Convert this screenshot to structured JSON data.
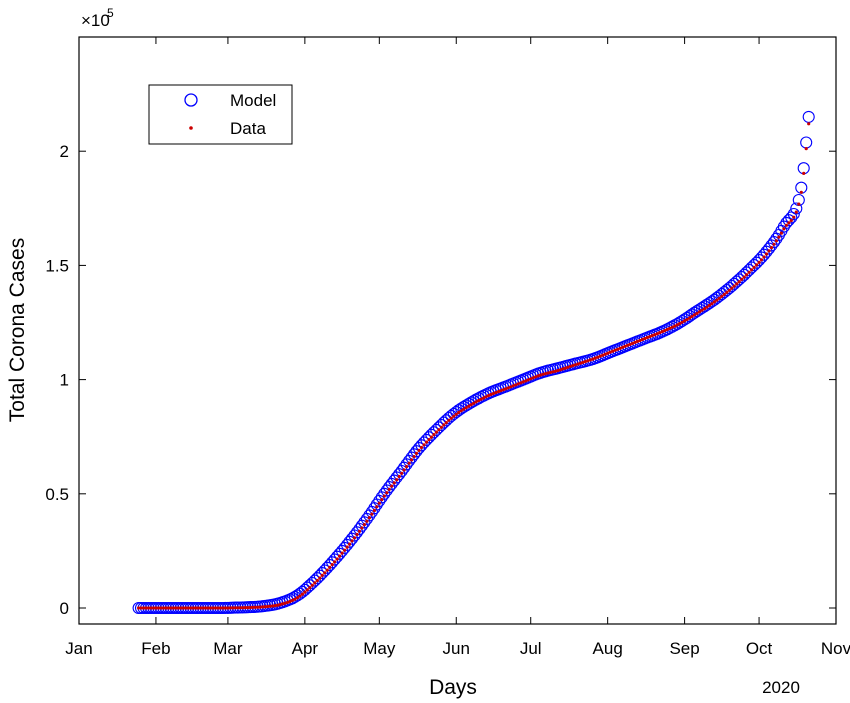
{
  "chart_data": {
    "type": "scatter",
    "year_label": "2020",
    "xlabel": "Days",
    "ylabel": "Total Corona Cases",
    "y_multiplier_base": "×10",
    "y_multiplier_exp": "5",
    "xlim": [
      "2020-01-01",
      "2020-11-01"
    ],
    "x_ticks": [
      {
        "date": "2020-01-01",
        "label": "Jan"
      },
      {
        "date": "2020-02-01",
        "label": "Feb"
      },
      {
        "date": "2020-03-01",
        "label": "Mar"
      },
      {
        "date": "2020-04-01",
        "label": "Apr"
      },
      {
        "date": "2020-05-01",
        "label": "May"
      },
      {
        "date": "2020-06-01",
        "label": "Jun"
      },
      {
        "date": "2020-07-01",
        "label": "Jul"
      },
      {
        "date": "2020-08-01",
        "label": "Aug"
      },
      {
        "date": "2020-09-01",
        "label": "Sep"
      },
      {
        "date": "2020-10-01",
        "label": "Oct"
      },
      {
        "date": "2020-11-01",
        "label": "Nov"
      }
    ],
    "ylim": [
      -0.07,
      2.5
    ],
    "y_ticks": [
      {
        "value": 0,
        "label": "0"
      },
      {
        "value": 0.5,
        "label": "0.5"
      },
      {
        "value": 1,
        "label": "1"
      },
      {
        "value": 1.5,
        "label": "1.5"
      },
      {
        "value": 2,
        "label": "2"
      }
    ],
    "grid": false,
    "legend_position": "top-left",
    "series": [
      {
        "name": "Model",
        "marker": "circle",
        "color": "#0000ff",
        "x": [
          "2020-01-25",
          "2020-02-05",
          "2020-02-15",
          "2020-02-25",
          "2020-03-05",
          "2020-03-15",
          "2020-03-22",
          "2020-03-29",
          "2020-04-05",
          "2020-04-12",
          "2020-04-19",
          "2020-04-26",
          "2020-05-03",
          "2020-05-10",
          "2020-05-17",
          "2020-05-24",
          "2020-05-31",
          "2020-06-07",
          "2020-06-14",
          "2020-06-21",
          "2020-06-28",
          "2020-07-05",
          "2020-07-12",
          "2020-07-19",
          "2020-07-26",
          "2020-08-02",
          "2020-08-09",
          "2020-08-16",
          "2020-08-23",
          "2020-08-30",
          "2020-09-06",
          "2020-09-13",
          "2020-09-20",
          "2020-09-27",
          "2020-10-04",
          "2020-10-11",
          "2020-10-18",
          "2020-10-21"
        ],
        "y": [
          0.0,
          0.0,
          0.0,
          0.0,
          0.002,
          0.008,
          0.022,
          0.055,
          0.12,
          0.2,
          0.29,
          0.39,
          0.5,
          0.6,
          0.7,
          0.78,
          0.85,
          0.9,
          0.94,
          0.97,
          1.0,
          1.03,
          1.05,
          1.07,
          1.09,
          1.12,
          1.15,
          1.18,
          1.21,
          1.25,
          1.3,
          1.35,
          1.41,
          1.48,
          1.56,
          1.67,
          1.84,
          2.15
        ]
      },
      {
        "name": "Data",
        "marker": "dot",
        "color": "#cc0000",
        "x": [
          "2020-01-25",
          "2020-02-05",
          "2020-02-15",
          "2020-02-25",
          "2020-03-05",
          "2020-03-15",
          "2020-03-22",
          "2020-03-29",
          "2020-04-05",
          "2020-04-12",
          "2020-04-19",
          "2020-04-26",
          "2020-05-03",
          "2020-05-10",
          "2020-05-17",
          "2020-05-24",
          "2020-05-31",
          "2020-06-07",
          "2020-06-14",
          "2020-06-21",
          "2020-06-28",
          "2020-07-05",
          "2020-07-12",
          "2020-07-19",
          "2020-07-26",
          "2020-08-02",
          "2020-08-09",
          "2020-08-16",
          "2020-08-23",
          "2020-08-30",
          "2020-09-06",
          "2020-09-13",
          "2020-09-20",
          "2020-09-27",
          "2020-10-04",
          "2020-10-11",
          "2020-10-18",
          "2020-10-21"
        ],
        "y": [
          0.0,
          0.0,
          0.0,
          0.0,
          0.001,
          0.005,
          0.015,
          0.045,
          0.11,
          0.19,
          0.28,
          0.38,
          0.49,
          0.59,
          0.69,
          0.77,
          0.84,
          0.89,
          0.93,
          0.96,
          0.99,
          1.02,
          1.04,
          1.065,
          1.09,
          1.12,
          1.15,
          1.18,
          1.21,
          1.245,
          1.29,
          1.34,
          1.4,
          1.47,
          1.55,
          1.66,
          1.82,
          2.12
        ]
      }
    ]
  }
}
